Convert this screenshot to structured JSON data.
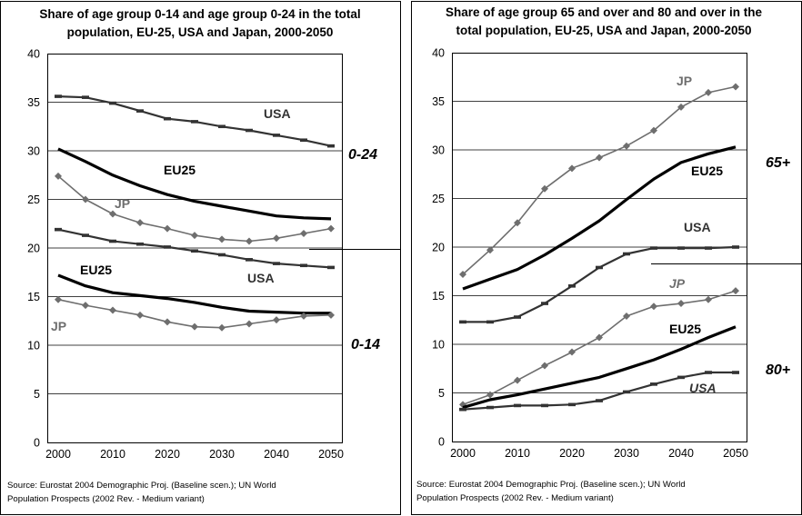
{
  "chart_data": [
    {
      "type": "line",
      "title_lines": [
        "Share of age group 0-14 and age group 0-24 in the total",
        "population, EU-25, USA and Japan, 2000-2050"
      ],
      "source_lines": [
        "Source: Eurostat 2004 Demographic Proj. (Baseline scen.); UN World",
        "Population Prospects (2002 Rev. - Medium variant)"
      ],
      "xlabel": "",
      "ylabel": "",
      "ylim": [
        0,
        40
      ],
      "xlim": [
        1998,
        2052
      ],
      "grid": true,
      "y_ticks": [
        "0",
        "5",
        "10",
        "15",
        "20",
        "25",
        "30",
        "35",
        "40"
      ],
      "x_ticks": [
        "2000",
        "2010",
        "2020",
        "2030",
        "2040",
        "2050"
      ],
      "group_labels": [
        "0-24",
        "0-14"
      ],
      "series": [
        {
          "name": "USA",
          "group": "0-24",
          "style": "dash",
          "x": [
            2000,
            2005,
            2010,
            2015,
            2020,
            2025,
            2030,
            2035,
            2040,
            2045,
            2050
          ],
          "values": [
            35.6,
            35.5,
            34.9,
            34.1,
            33.3,
            33.0,
            32.5,
            32.1,
            31.6,
            31.1,
            30.5
          ]
        },
        {
          "name": "EU25",
          "group": "0-24",
          "style": "thick",
          "x": [
            2000,
            2005,
            2010,
            2015,
            2020,
            2025,
            2030,
            2035,
            2040,
            2045,
            2050
          ],
          "values": [
            30.2,
            28.9,
            27.5,
            26.4,
            25.5,
            24.8,
            24.3,
            23.8,
            23.3,
            23.1,
            23.0
          ]
        },
        {
          "name": "JP",
          "group": "0-24",
          "style": "diamond",
          "x": [
            2000,
            2005,
            2010,
            2015,
            2020,
            2025,
            2030,
            2035,
            2040,
            2045,
            2050
          ],
          "values": [
            27.4,
            25.0,
            23.5,
            22.6,
            22.0,
            21.3,
            20.9,
            20.7,
            21.0,
            21.5,
            22.0
          ]
        },
        {
          "name": "USA",
          "group": "0-14",
          "style": "dash",
          "x": [
            2000,
            2005,
            2010,
            2015,
            2020,
            2025,
            2030,
            2035,
            2040,
            2045,
            2050
          ],
          "values": [
            21.9,
            21.3,
            20.7,
            20.4,
            20.1,
            19.7,
            19.3,
            18.8,
            18.4,
            18.2,
            18.0
          ]
        },
        {
          "name": "EU25",
          "group": "0-14",
          "style": "thick",
          "x": [
            2000,
            2005,
            2010,
            2015,
            2020,
            2025,
            2030,
            2035,
            2040,
            2045,
            2050
          ],
          "values": [
            17.2,
            16.1,
            15.4,
            15.1,
            14.8,
            14.4,
            13.9,
            13.5,
            13.4,
            13.3,
            13.3
          ]
        },
        {
          "name": "JP",
          "group": "0-14",
          "style": "diamond",
          "x": [
            2000,
            2005,
            2010,
            2015,
            2020,
            2025,
            2030,
            2035,
            2040,
            2045,
            2050
          ],
          "values": [
            14.7,
            14.1,
            13.6,
            13.1,
            12.4,
            11.9,
            11.8,
            12.2,
            12.6,
            13.0,
            13.1
          ]
        }
      ]
    },
    {
      "type": "line",
      "title_lines": [
        "Share of age group 65 and over and 80 and over in the",
        "total population, EU-25, USA and Japan, 2000-2050"
      ],
      "source_lines": [
        "Source: Eurostat 2004 Demographic Proj. (Baseline scen.); UN World",
        "Population Prospects (2002 Rev. - Medium variant)"
      ],
      "xlabel": "",
      "ylabel": "",
      "ylim": [
        0,
        40
      ],
      "xlim": [
        1998,
        2052
      ],
      "grid": true,
      "y_ticks": [
        "0",
        "5",
        "10",
        "15",
        "20",
        "25",
        "30",
        "35",
        "40"
      ],
      "x_ticks": [
        "2000",
        "2010",
        "2020",
        "2030",
        "2040",
        "2050"
      ],
      "group_labels": [
        "65+",
        "80+"
      ],
      "series": [
        {
          "name": "JP",
          "group": "65+",
          "style": "diamond",
          "x": [
            2000,
            2005,
            2010,
            2015,
            2020,
            2025,
            2030,
            2035,
            2040,
            2045,
            2050
          ],
          "values": [
            17.2,
            19.7,
            22.5,
            26.0,
            28.1,
            29.2,
            30.4,
            32.0,
            34.4,
            35.9,
            36.5
          ]
        },
        {
          "name": "EU25",
          "group": "65+",
          "style": "thick",
          "x": [
            2000,
            2005,
            2010,
            2015,
            2020,
            2025,
            2030,
            2035,
            2040,
            2045,
            2050
          ],
          "values": [
            15.7,
            16.7,
            17.7,
            19.2,
            20.9,
            22.7,
            24.9,
            27.0,
            28.7,
            29.6,
            30.3
          ]
        },
        {
          "name": "USA",
          "group": "65+",
          "style": "dash",
          "x": [
            2000,
            2005,
            2010,
            2015,
            2020,
            2025,
            2030,
            2035,
            2040,
            2045,
            2050
          ],
          "values": [
            12.3,
            12.3,
            12.8,
            14.2,
            16.0,
            17.9,
            19.3,
            19.9,
            19.9,
            19.9,
            20.0
          ]
        },
        {
          "name": "JP",
          "group": "80+",
          "style": "diamond",
          "x": [
            2000,
            2005,
            2010,
            2015,
            2020,
            2025,
            2030,
            2035,
            2040,
            2045,
            2050
          ],
          "values": [
            3.8,
            4.8,
            6.3,
            7.8,
            9.2,
            10.7,
            12.9,
            13.9,
            14.2,
            14.6,
            15.5
          ]
        },
        {
          "name": "EU25",
          "group": "80+",
          "style": "thick",
          "x": [
            2000,
            2005,
            2010,
            2015,
            2020,
            2025,
            2030,
            2035,
            2040,
            2045,
            2050
          ],
          "values": [
            3.5,
            4.3,
            4.8,
            5.4,
            6.0,
            6.6,
            7.5,
            8.4,
            9.5,
            10.7,
            11.8
          ]
        },
        {
          "name": "USA",
          "group": "80+",
          "style": "dash",
          "x": [
            2000,
            2005,
            2010,
            2015,
            2020,
            2025,
            2030,
            2035,
            2040,
            2045,
            2050
          ],
          "values": [
            3.3,
            3.5,
            3.7,
            3.7,
            3.8,
            4.2,
            5.1,
            5.9,
            6.6,
            7.1,
            7.1
          ]
        }
      ]
    }
  ],
  "colors": {
    "eu25": "#000000",
    "usa": "#333333",
    "jp": "#6e6e6e",
    "grid": "#000000"
  }
}
